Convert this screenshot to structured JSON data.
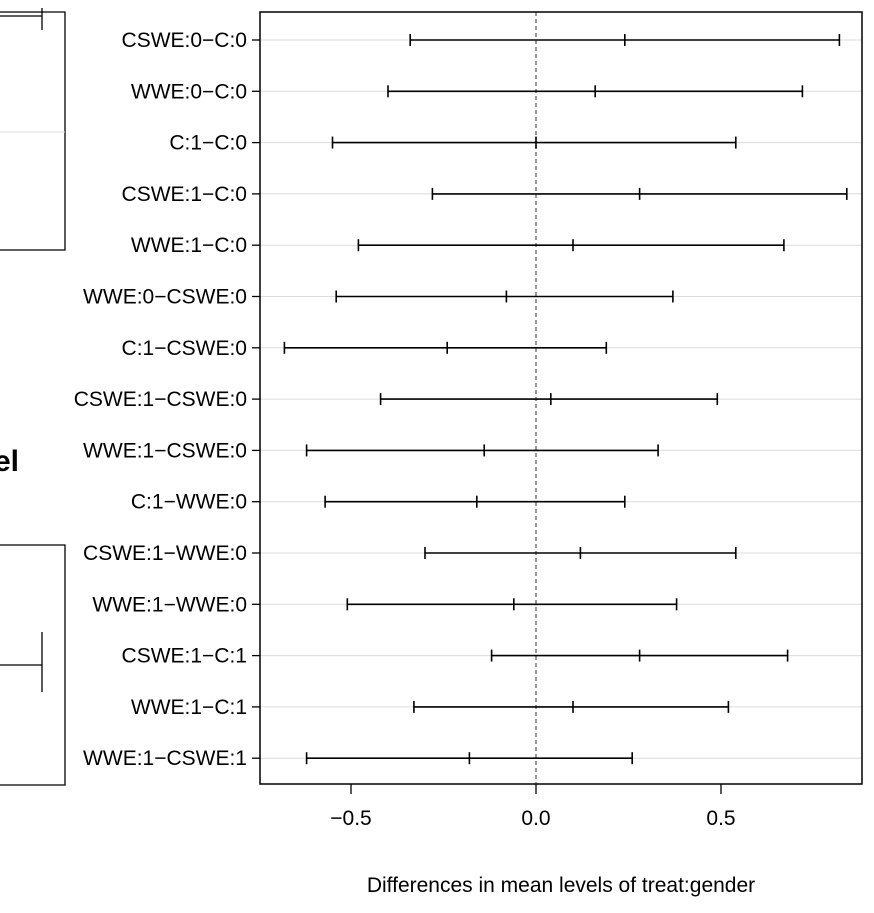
{
  "chart_data": {
    "type": "errorbar",
    "orientation": "horizontal",
    "xlabel": "Differences in mean levels of treat:gender",
    "xlim": [
      -0.75,
      0.87
    ],
    "xticks": [
      -0.5,
      0.0,
      0.5
    ],
    "xtick_labels": [
      "−0.5",
      "0.0",
      "0.5"
    ],
    "reference_line": 0.0,
    "grid": "horizontal",
    "comparisons": [
      {
        "label": "CSWE:0−C:0",
        "lower": -0.34,
        "estimate": 0.24,
        "upper": 0.82
      },
      {
        "label": "WWE:0−C:0",
        "lower": -0.4,
        "estimate": 0.16,
        "upper": 0.72
      },
      {
        "label": "C:1−C:0",
        "lower": -0.55,
        "estimate": 0.0,
        "upper": 0.54
      },
      {
        "label": "CSWE:1−C:0",
        "lower": -0.28,
        "estimate": 0.28,
        "upper": 0.84
      },
      {
        "label": "WWE:1−C:0",
        "lower": -0.48,
        "estimate": 0.1,
        "upper": 0.67
      },
      {
        "label": "WWE:0−CSWE:0",
        "lower": -0.54,
        "estimate": -0.08,
        "upper": 0.37
      },
      {
        "label": "C:1−CSWE:0",
        "lower": -0.68,
        "estimate": -0.24,
        "upper": 0.19
      },
      {
        "label": "CSWE:1−CSWE:0",
        "lower": -0.42,
        "estimate": 0.04,
        "upper": 0.49
      },
      {
        "label": "WWE:1−CSWE:0",
        "lower": -0.62,
        "estimate": -0.14,
        "upper": 0.33
      },
      {
        "label": "C:1−WWE:0",
        "lower": -0.57,
        "estimate": -0.16,
        "upper": 0.24
      },
      {
        "label": "CSWE:1−WWE:0",
        "lower": -0.3,
        "estimate": 0.12,
        "upper": 0.54
      },
      {
        "label": "WWE:1−WWE:0",
        "lower": -0.51,
        "estimate": -0.06,
        "upper": 0.38
      },
      {
        "label": "CSWE:1−C:1",
        "lower": -0.12,
        "estimate": 0.28,
        "upper": 0.68
      },
      {
        "label": "WWE:1−C:1",
        "lower": -0.33,
        "estimate": 0.1,
        "upper": 0.52
      },
      {
        "label": "WWE:1−CSWE:1",
        "lower": -0.62,
        "estimate": -0.18,
        "upper": 0.26
      }
    ]
  },
  "fragments": {
    "left_partial_text": "el"
  }
}
